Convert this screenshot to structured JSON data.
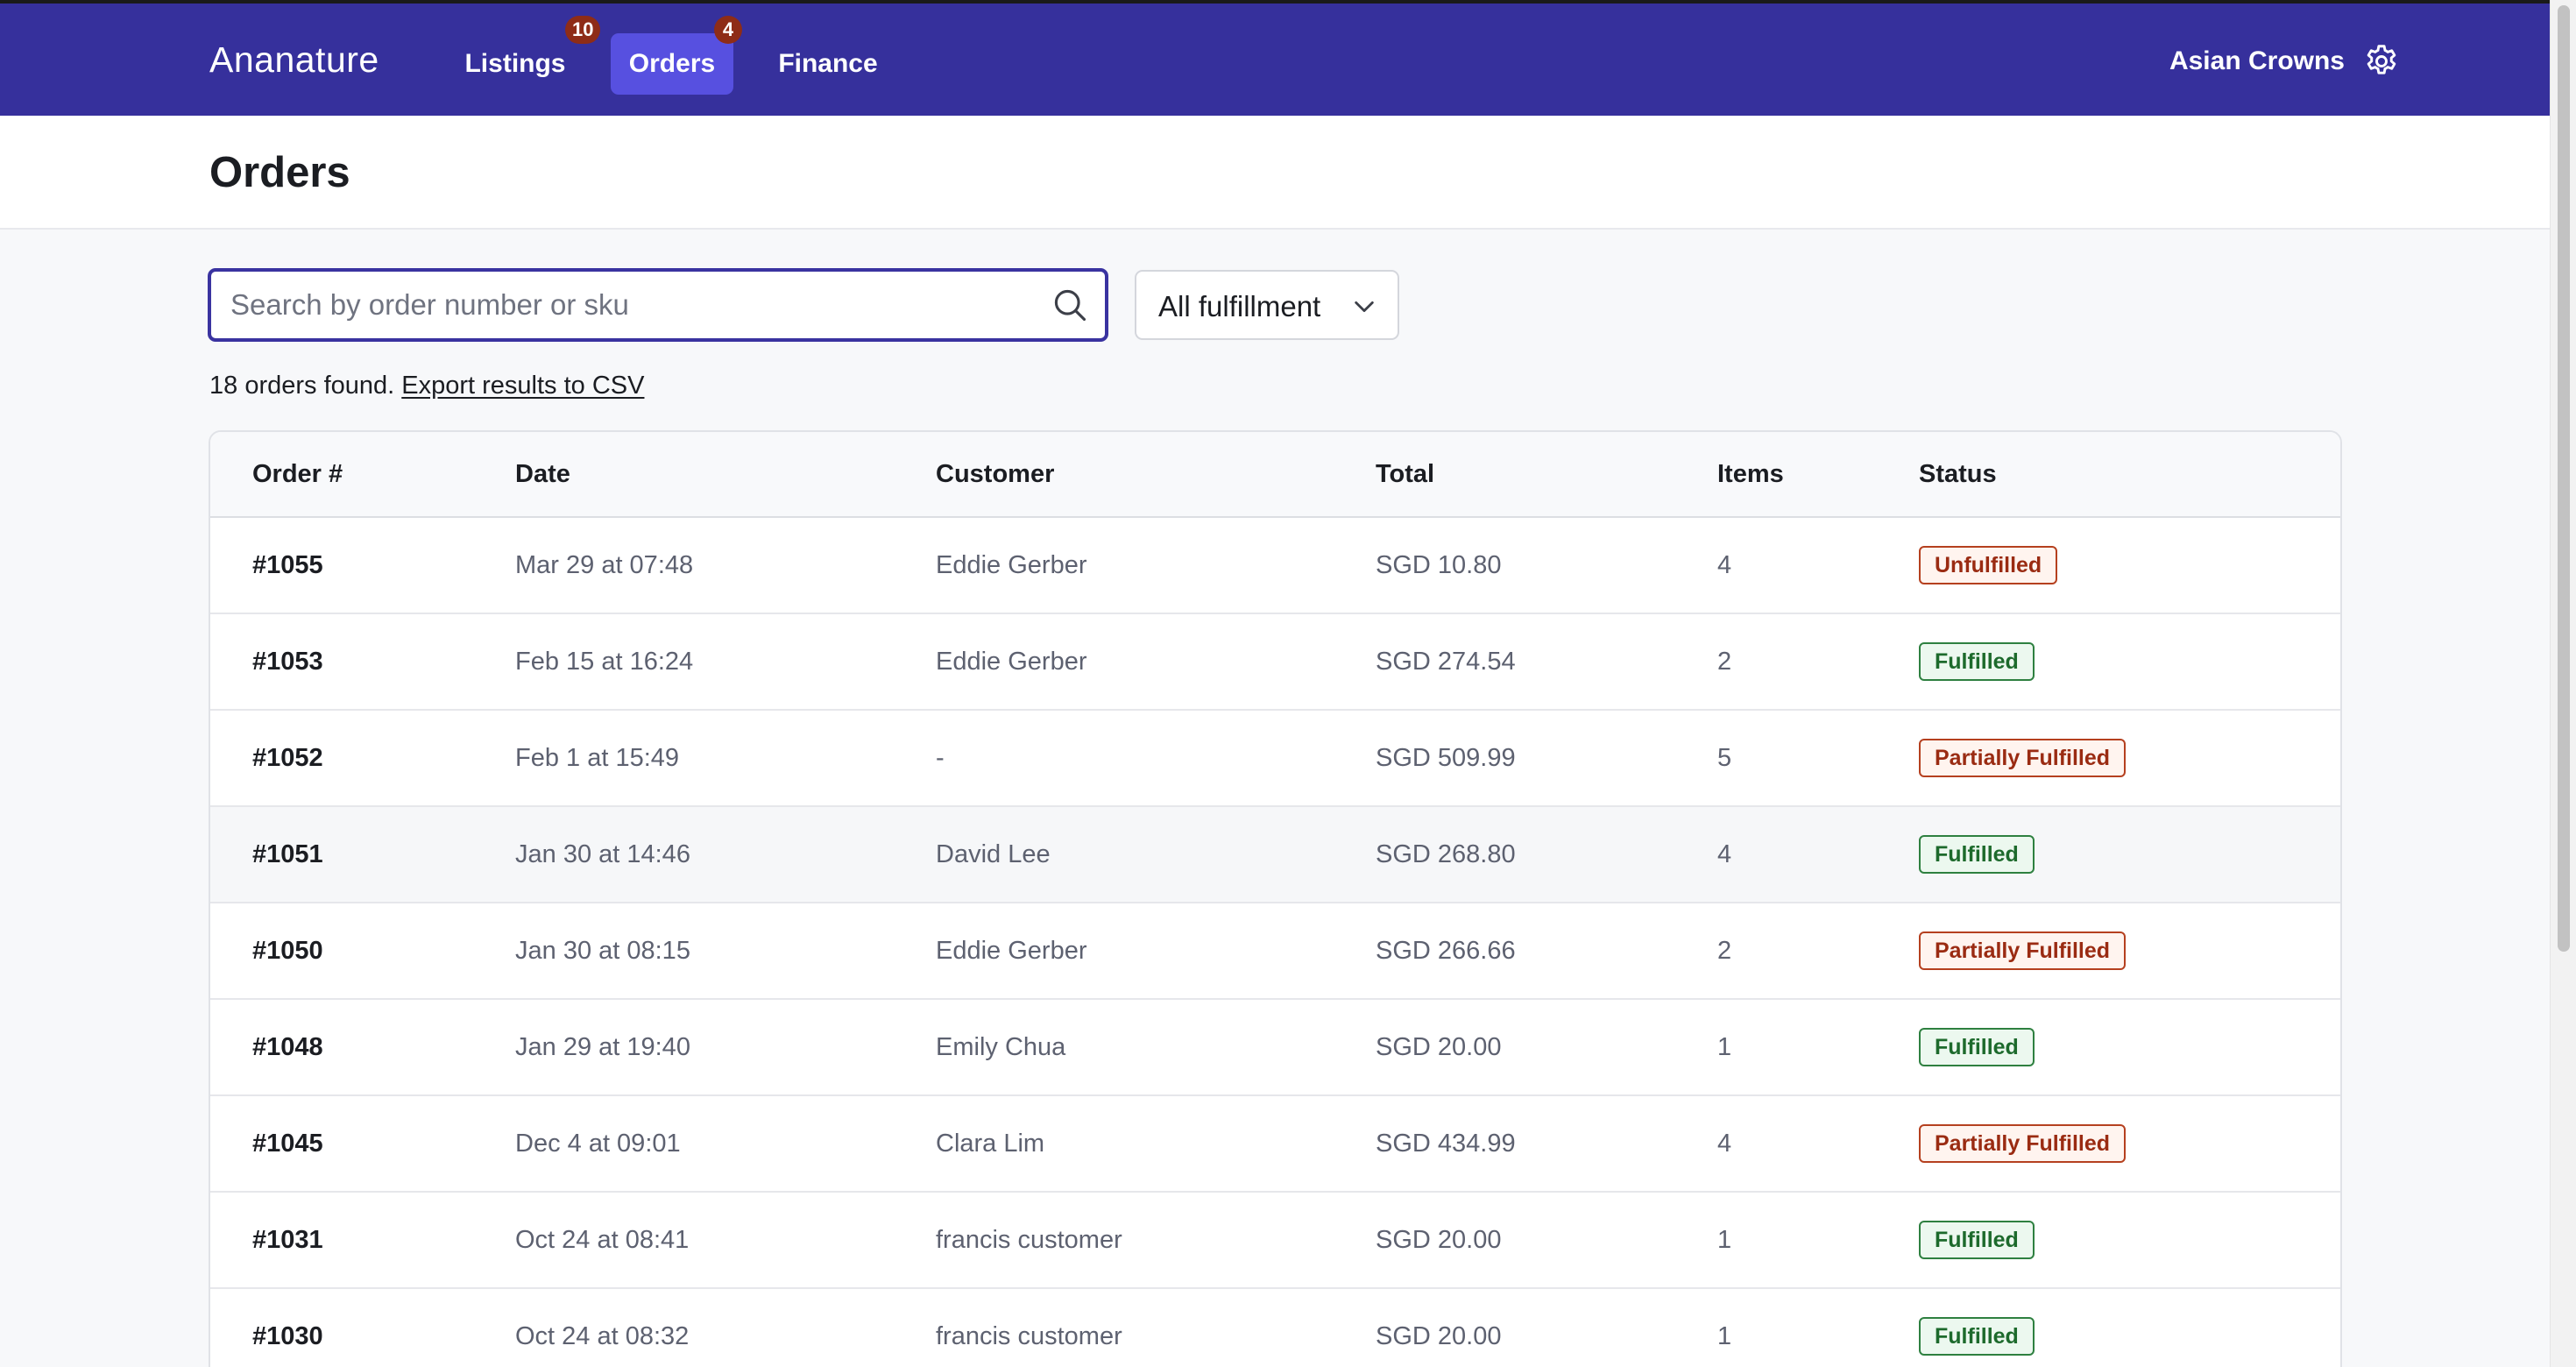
{
  "nav": {
    "brand": "Ananature",
    "items": [
      {
        "label": "Listings",
        "badge": "10",
        "active": false
      },
      {
        "label": "Orders",
        "badge": "4",
        "active": true
      },
      {
        "label": "Finance",
        "badge": null,
        "active": false
      }
    ],
    "account_name": "Asian Crowns",
    "account_icon": "gear-icon"
  },
  "page": {
    "title": "Orders"
  },
  "filters": {
    "search_placeholder": "Search by order number or sku",
    "search_value": "",
    "search_icon": "search-icon",
    "fulfillment_selected": "All fulfillment"
  },
  "summary": {
    "count_text": "18 orders found.",
    "export_link": "Export results to CSV"
  },
  "table": {
    "headers": {
      "order": "Order #",
      "date": "Date",
      "customer": "Customer",
      "total": "Total",
      "items": "Items",
      "status": "Status"
    },
    "rows": [
      {
        "order": "#1055",
        "date": "Mar 29 at 07:48",
        "customer": "Eddie Gerber",
        "total": "SGD 10.80",
        "items": "4",
        "status": "Unfulfilled"
      },
      {
        "order": "#1053",
        "date": "Feb 15 at 16:24",
        "customer": "Eddie Gerber",
        "total": "SGD 274.54",
        "items": "2",
        "status": "Fulfilled"
      },
      {
        "order": "#1052",
        "date": "Feb 1 at 15:49",
        "customer": "-",
        "total": "SGD 509.99",
        "items": "5",
        "status": "Partially Fulfilled"
      },
      {
        "order": "#1051",
        "date": "Jan 30 at 14:46",
        "customer": "David Lee",
        "total": "SGD 268.80",
        "items": "4",
        "status": "Fulfilled"
      },
      {
        "order": "#1050",
        "date": "Jan 30 at 08:15",
        "customer": "Eddie Gerber",
        "total": "SGD 266.66",
        "items": "2",
        "status": "Partially Fulfilled"
      },
      {
        "order": "#1048",
        "date": "Jan 29 at 19:40",
        "customer": "Emily Chua",
        "total": "SGD 20.00",
        "items": "1",
        "status": "Fulfilled"
      },
      {
        "order": "#1045",
        "date": "Dec 4 at 09:01",
        "customer": "Clara Lim",
        "total": "SGD 434.99",
        "items": "4",
        "status": "Partially Fulfilled"
      },
      {
        "order": "#1031",
        "date": "Oct 24 at 08:41",
        "customer": "francis customer",
        "total": "SGD 20.00",
        "items": "1",
        "status": "Fulfilled"
      },
      {
        "order": "#1030",
        "date": "Oct 24 at 08:32",
        "customer": "francis customer",
        "total": "SGD 20.00",
        "items": "1",
        "status": "Fulfilled"
      }
    ]
  },
  "colors": {
    "nav_bg": "#36309c",
    "nav_active": "#5750e0",
    "badge_bg": "#8e2c17",
    "fulfilled": "#1d6a2c",
    "unfulfilled": "#9a2b12"
  }
}
